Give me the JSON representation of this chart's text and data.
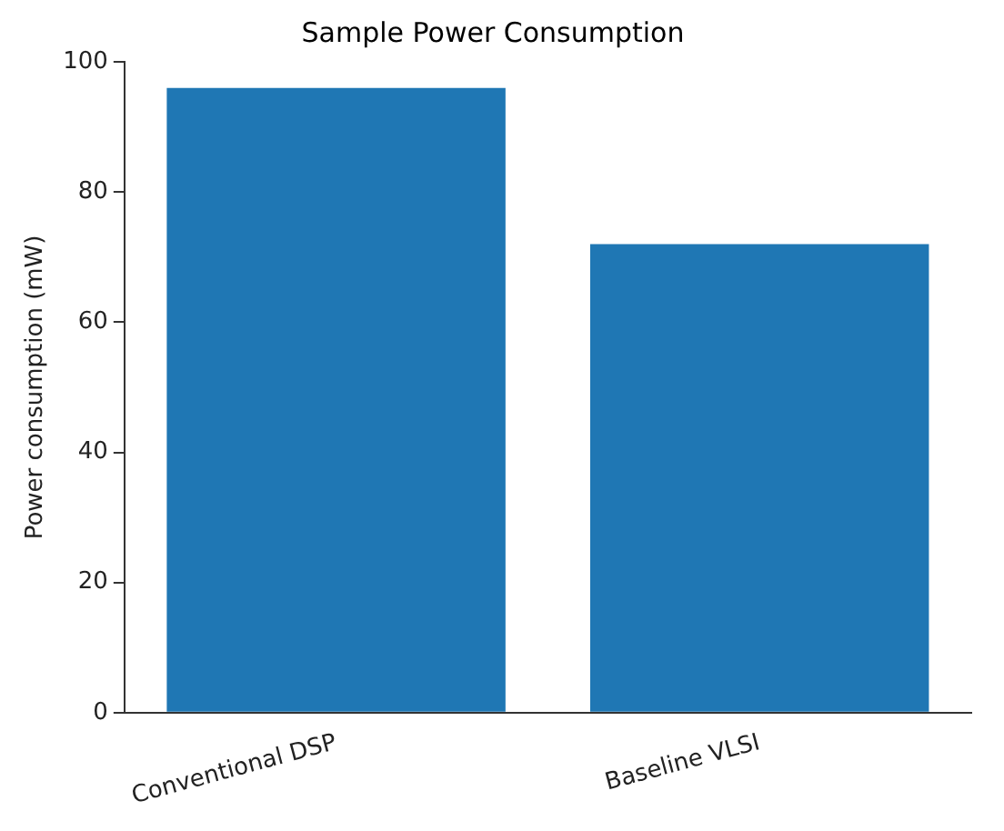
{
  "chart_data": {
    "type": "bar",
    "title": "Sample Power Consumption",
    "ylabel": "Power consumption (mW)",
    "categories": [
      "Conventional DSP",
      "Baseline VLSI"
    ],
    "values": [
      96,
      72
    ],
    "color": "#1f77b4",
    "ylim": [
      0,
      100
    ],
    "yticks": [
      0,
      20,
      40,
      60,
      80,
      100
    ],
    "grid": false
  }
}
